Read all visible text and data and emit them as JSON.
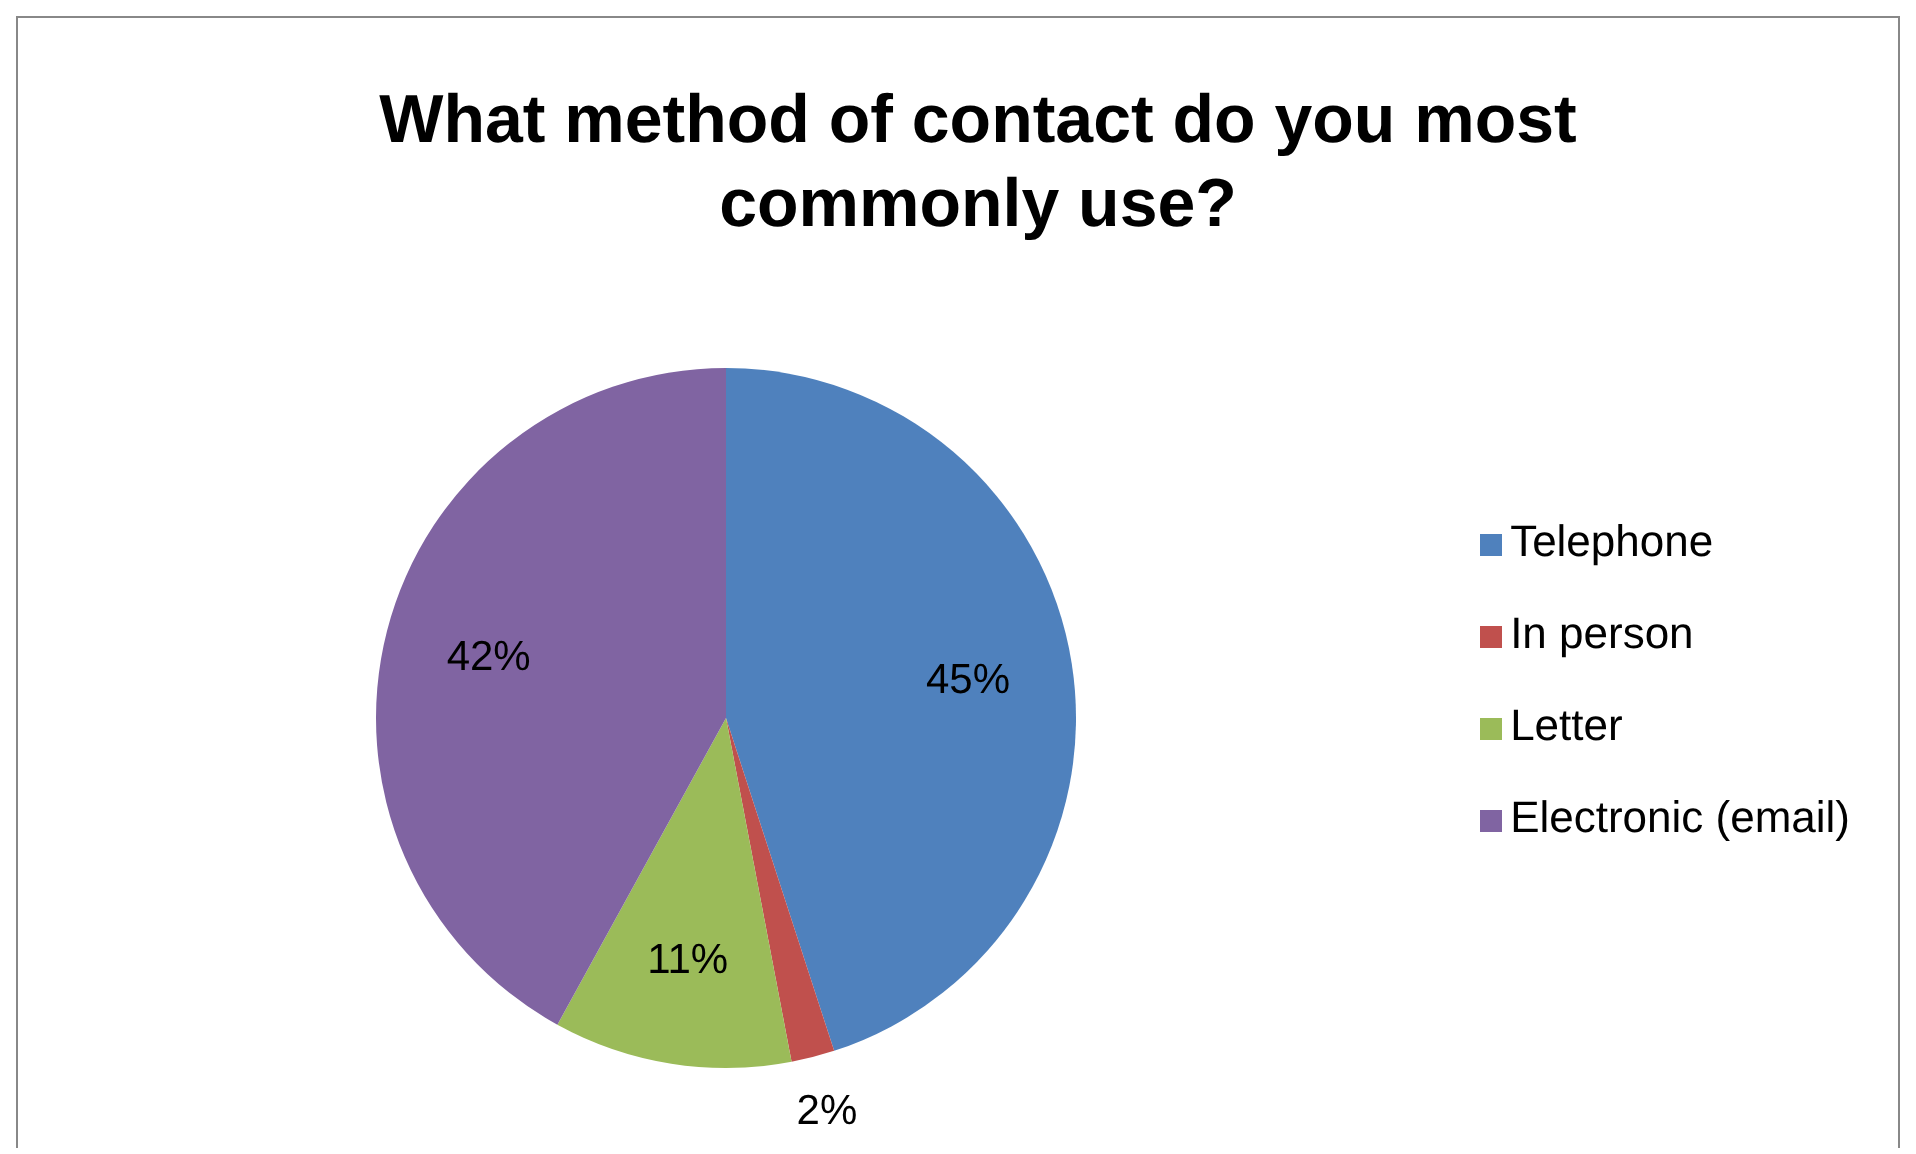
{
  "chart_data": {
    "type": "pie",
    "title": "What method of contact do you most commonly use?",
    "categories": [
      "Telephone",
      "In person",
      "Letter",
      "Electronic (email)"
    ],
    "values": [
      45,
      2,
      11,
      42
    ],
    "value_labels": [
      "45%",
      "2%",
      "11%",
      "42%"
    ],
    "colors": [
      "#4f81bd",
      "#c0504d",
      "#9bbb59",
      "#8064a2"
    ],
    "legend": "right"
  }
}
